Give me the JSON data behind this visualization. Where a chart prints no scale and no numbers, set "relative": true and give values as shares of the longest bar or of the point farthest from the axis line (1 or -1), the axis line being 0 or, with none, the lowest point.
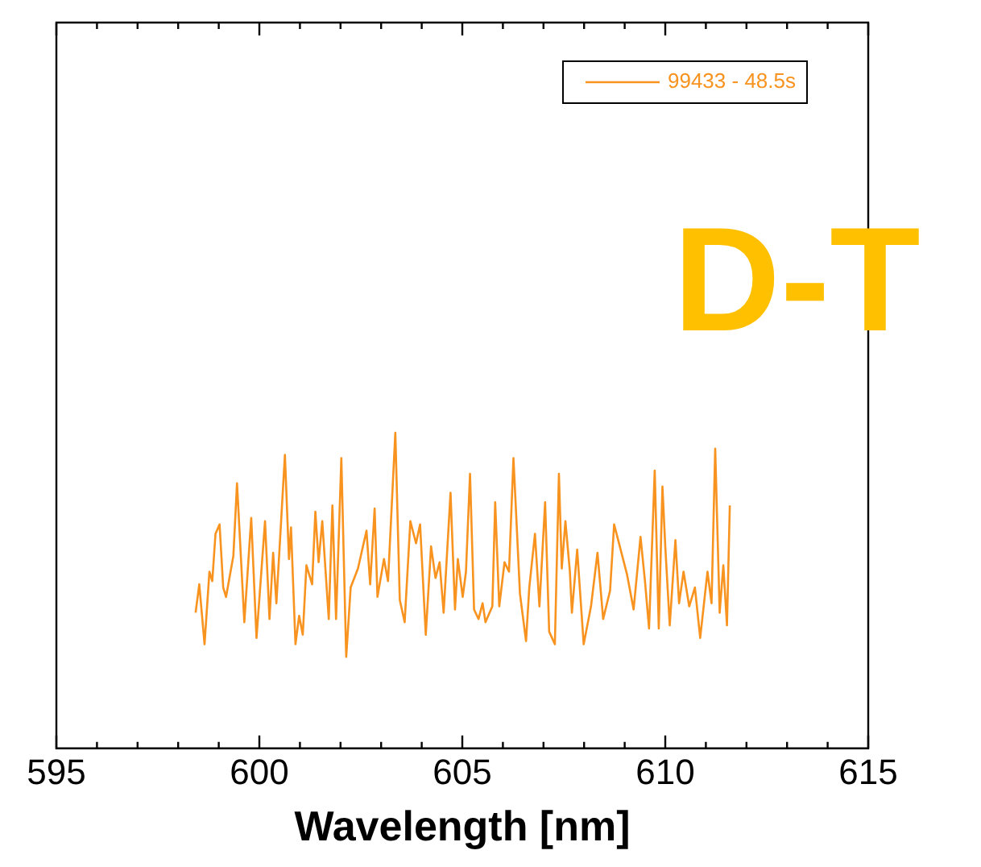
{
  "chart_data": {
    "type": "line",
    "relative": true,
    "xlabel": "Wavelength [nm]",
    "annotations": [
      "D-T"
    ],
    "legend": "top right",
    "grid": false,
    "marker": "none",
    "line_style": "solid",
    "xlim": [
      595,
      615
    ],
    "xticks": [
      595,
      {
        "value": 596,
        "label": null
      },
      {
        "value": 597,
        "label": null
      },
      {
        "value": 598,
        "label": null
      },
      {
        "value": 599,
        "label": null
      },
      600,
      {
        "value": 601,
        "label": null
      },
      {
        "value": 602,
        "label": null
      },
      {
        "value": 603,
        "label": null
      },
      {
        "value": 604,
        "label": null
      },
      605,
      {
        "value": 606,
        "label": null
      },
      {
        "value": 607,
        "label": null
      },
      {
        "value": 608,
        "label": null
      },
      {
        "value": 609,
        "label": null
      },
      610,
      {
        "value": 611,
        "label": null
      },
      {
        "value": 612,
        "label": null
      },
      {
        "value": 613,
        "label": null
      },
      {
        "value": 614,
        "label": null
      },
      615
    ],
    "series": [
      {
        "name": "99433 - 48.5s",
        "color": "#f7931e",
        "x": [
          598.43,
          598.52,
          598.65,
          598.77,
          598.84,
          598.92,
          599.02,
          599.11,
          599.18,
          599.36,
          599.45,
          599.63,
          599.8,
          599.93,
          600.14,
          600.25,
          600.34,
          600.42,
          600.63,
          600.73,
          600.78,
          600.89,
          600.98,
          601.07,
          601.16,
          601.3,
          601.38,
          601.46,
          601.55,
          601.71,
          601.8,
          601.89,
          602.02,
          602.14,
          602.25,
          602.43,
          602.64,
          602.73,
          602.84,
          602.91,
          603.07,
          603.17,
          603.35,
          603.46,
          603.58,
          603.72,
          603.86,
          603.96,
          604.1,
          604.23,
          604.34,
          604.44,
          604.54,
          604.71,
          604.82,
          604.89,
          605.01,
          605.09,
          605.19,
          605.29,
          605.4,
          605.5,
          605.57,
          605.74,
          605.81,
          605.91,
          606.04,
          606.15,
          606.26,
          606.42,
          606.57,
          606.65,
          606.79,
          606.9,
          607.04,
          607.14,
          607.28,
          607.38,
          607.45,
          607.54,
          607.65,
          607.7,
          607.83,
          607.99,
          608.17,
          608.33,
          608.47,
          608.64,
          608.74,
          608.88,
          609.06,
          609.22,
          609.39,
          609.5,
          609.6,
          609.74,
          609.84,
          609.93,
          610.0,
          610.11,
          610.25,
          610.34,
          610.45,
          610.59,
          610.73,
          610.86,
          611.04,
          611.14,
          611.23,
          611.34,
          611.43,
          611.52,
          611.59
        ],
        "values": [
          0.43,
          0.52,
          0.33,
          0.56,
          0.53,
          0.68,
          0.71,
          0.51,
          0.48,
          0.61,
          0.84,
          0.4,
          0.73,
          0.35,
          0.72,
          0.41,
          0.62,
          0.46,
          0.93,
          0.6,
          0.7,
          0.33,
          0.42,
          0.36,
          0.58,
          0.52,
          0.75,
          0.59,
          0.72,
          0.41,
          0.77,
          0.41,
          0.92,
          0.29,
          0.51,
          0.57,
          0.69,
          0.52,
          0.76,
          0.48,
          0.6,
          0.53,
          1.0,
          0.47,
          0.4,
          0.72,
          0.65,
          0.71,
          0.36,
          0.64,
          0.54,
          0.59,
          0.43,
          0.81,
          0.44,
          0.6,
          0.48,
          0.56,
          0.87,
          0.44,
          0.41,
          0.46,
          0.4,
          0.45,
          0.78,
          0.45,
          0.59,
          0.56,
          0.92,
          0.49,
          0.34,
          0.51,
          0.68,
          0.45,
          0.78,
          0.37,
          0.33,
          0.87,
          0.57,
          0.72,
          0.56,
          0.43,
          0.63,
          0.33,
          0.45,
          0.62,
          0.41,
          0.5,
          0.71,
          0.64,
          0.55,
          0.44,
          0.67,
          0.53,
          0.38,
          0.88,
          0.38,
          0.83,
          0.64,
          0.39,
          0.66,
          0.46,
          0.56,
          0.45,
          0.51,
          0.35,
          0.56,
          0.46,
          0.95,
          0.43,
          0.58,
          0.39,
          0.77
        ]
      }
    ]
  }
}
